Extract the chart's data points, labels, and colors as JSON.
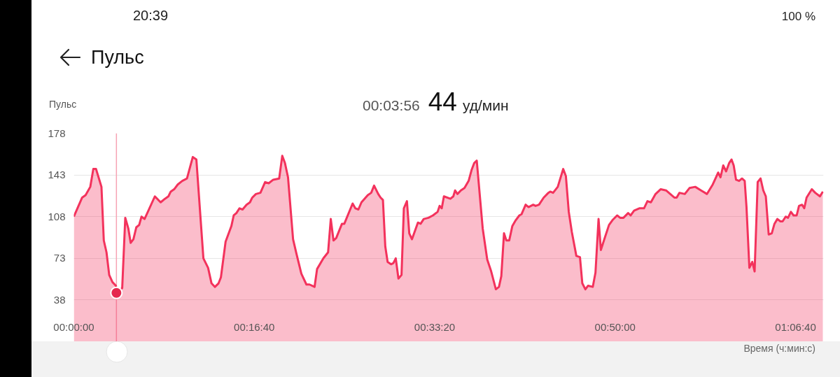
{
  "chart_data": {
    "type": "area",
    "title": "Пульс",
    "ylabel": "Пульс",
    "xlabel": "Время (ч:мин:с)",
    "x": [
      0,
      46,
      65,
      91,
      108,
      123,
      153,
      166,
      181,
      196,
      214,
      233,
      236,
      268,
      285,
      302,
      315,
      330,
      346,
      362,
      375,
      392,
      449,
      481,
      505,
      524,
      537,
      556,
      576,
      601,
      627,
      659,
      679,
      718,
      744,
      763,
      782,
      802,
      815,
      841,
      873,
      886,
      901,
      918,
      935,
      957,
      976,
      989,
      1009,
      1034,
      1060,
      1080,
      1105,
      1138,
      1155,
      1170,
      1187,
      1215,
      1235,
      1261,
      1289,
      1306,
      1334,
      1348,
      1383,
      1409,
      1424,
      1439,
      1454,
      1486,
      1499,
      1545,
      1560,
      1577,
      1594,
      1629,
      1648,
      1664,
      1687,
      1700,
      1713,
      1726,
      1739,
      1758,
      1771,
      1784,
      1799,
      1816,
      1829,
      1846,
      1859,
      1874,
      1907,
      1922,
      1939,
      1965,
      1990,
      2016,
      2027,
      2039,
      2051,
      2087,
      2103,
      2113,
      2126,
      2145,
      2165,
      2188,
      2204,
      2219,
      2233,
      2266,
      2291,
      2313,
      2339,
      2356,
      2369,
      2384,
      2397,
      2413,
      2430,
      2449,
      2469,
      2481,
      2504,
      2520,
      2546,
      2559,
      2578,
      2604,
      2630,
      2640,
      2656,
      2682,
      2712,
      2727,
      2743,
      2760,
      2785,
      2805,
      2818,
      2835,
      2850,
      2876,
      2891,
      2908,
      2921,
      2940,
      2966,
      2985,
      3011,
      3028,
      3046,
      3072,
      3086,
      3105,
      3134,
      3160,
      3179,
      3198,
      3224,
      3252,
      3282,
      3328,
      3341,
      3356,
      3386,
      3412,
      3444,
      3476,
      3509,
      3541,
      3571,
      3584,
      3599,
      3615,
      3632,
      3645,
      3657,
      3670,
      3687,
      3703,
      3718,
      3728,
      3744,
      3760,
      3773,
      3790,
      3806,
      3821,
      3835,
      3851,
      3868,
      3883,
      3899,
      3916,
      3928,
      3945,
      3958,
      3974,
      3989,
      4006,
      4019,
      4036,
      4048,
      4061,
      4090,
      4109,
      4135,
      4151
    ],
    "series": [
      {
        "color": "#f3325c",
        "values": [
          108,
          124,
          126,
          133,
          148,
          148,
          133,
          88,
          78,
          59,
          53,
          50,
          44,
          48,
          107,
          98,
          86,
          89,
          99,
          101,
          108,
          106,
          125,
          120,
          123,
          125,
          129,
          131,
          135,
          138,
          140,
          158,
          156,
          73,
          65,
          52,
          49,
          52,
          57,
          87,
          100,
          109,
          111,
          115,
          114,
          118,
          120,
          124,
          127,
          128,
          137,
          136,
          139,
          140,
          159,
          153,
          141,
          89,
          76,
          60,
          51,
          51,
          49,
          64,
          73,
          78,
          106,
          88,
          90,
          102,
          102,
          119,
          115,
          114,
          120,
          126,
          128,
          134,
          127,
          124,
          122,
          83,
          70,
          68,
          69,
          73,
          56,
          59,
          115,
          121,
          94,
          89,
          103,
          102,
          106,
          107,
          109,
          112,
          117,
          115,
          125,
          123,
          125,
          130,
          127,
          130,
          132,
          138,
          147,
          153,
          155,
          98,
          72,
          62,
          47,
          49,
          58,
          94,
          88,
          88,
          100,
          105,
          109,
          110,
          118,
          116,
          118,
          117,
          118,
          124,
          128,
          129,
          128,
          133,
          148,
          142,
          112,
          95,
          75,
          74,
          52,
          47,
          50,
          49,
          61,
          106,
          80,
          89,
          101,
          105,
          109,
          107,
          107,
          111,
          109,
          113,
          115,
          115,
          121,
          120,
          127,
          131,
          130,
          124,
          124,
          128,
          127,
          132,
          133,
          130,
          127,
          135,
          145,
          141,
          151,
          146,
          153,
          156,
          151,
          139,
          138,
          140,
          138,
          116,
          65,
          70,
          62,
          137,
          140,
          130,
          125,
          93,
          94,
          102,
          106,
          104,
          104,
          108,
          107,
          112,
          109,
          109,
          117,
          118,
          115,
          124,
          131,
          128,
          125,
          129
        ]
      },
      {
        "type": "scatter",
        "marker": "circle",
        "color": "#e5284f",
        "x": [
          236
        ],
        "values": [
          44
        ]
      }
    ],
    "xlim": [
      0,
      4155
    ],
    "xticks": [
      {
        "value": 0,
        "label": "00:00:00"
      },
      {
        "value": 1000,
        "label": "00:16:40"
      },
      {
        "value": 2000,
        "label": "00:33:20"
      },
      {
        "value": 3000,
        "label": "00:50:00"
      },
      {
        "value": 4000,
        "label": "01:06:40"
      }
    ],
    "ylim": [
      3,
      178
    ],
    "yticks": [
      38,
      73,
      108,
      143,
      178
    ],
    "grid": "y",
    "ref_lines": [
      {
        "axis": "x",
        "value": 236,
        "color": "#f6a3b4"
      }
    ],
    "annotations": [
      "00:03:56",
      "44",
      "уд/мин",
      "20:39",
      "100 %"
    ]
  }
}
